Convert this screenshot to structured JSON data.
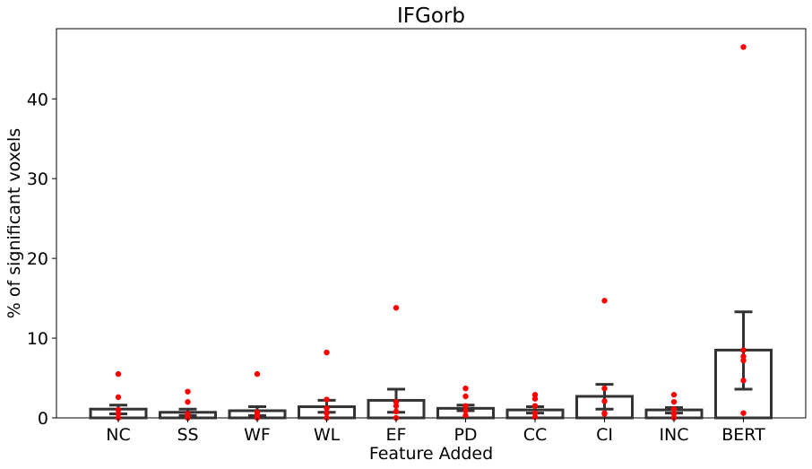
{
  "chart_data": {
    "type": "bar",
    "title": "IFGorb",
    "xlabel": "Feature Added",
    "ylabel": "% of significant voxels",
    "ylim": [
      0,
      48.8
    ],
    "yticks": [
      0,
      10,
      20,
      30,
      40
    ],
    "grid": false,
    "legend": "none",
    "categories": [
      "NC",
      "SS",
      "WF",
      "WL",
      "EF",
      "PD",
      "CC",
      "CI",
      "INC",
      "BERT"
    ],
    "series": [
      {
        "values": [
          1.1,
          0.7,
          0.9,
          1.4,
          2.2,
          1.2,
          1.0,
          2.7,
          1.0,
          8.5
        ],
        "error_low": [
          0.5,
          0.3,
          0.3,
          0.7,
          0.7,
          0.9,
          0.6,
          1.1,
          0.6,
          3.6
        ],
        "error_high": [
          1.6,
          1.1,
          1.4,
          2.2,
          3.6,
          1.6,
          1.4,
          4.2,
          1.3,
          13.3
        ]
      }
    ],
    "points": [
      [
        5.5,
        2.6,
        1.0,
        0.5,
        0.0
      ],
      [
        3.3,
        2.0,
        0.5,
        0.2,
        0.0
      ],
      [
        5.5,
        0.7,
        0.4,
        0.1,
        0.0
      ],
      [
        8.2,
        2.3,
        1.2,
        0.6,
        0.0
      ],
      [
        13.8,
        2.0,
        1.5,
        0.8,
        0.0
      ],
      [
        3.7,
        2.7,
        1.5,
        0.9,
        0.3
      ],
      [
        2.9,
        2.4,
        1.5,
        0.6,
        0.1
      ],
      [
        14.7,
        3.7,
        2.1,
        0.6,
        0.5
      ],
      [
        2.9,
        2.0,
        1.1,
        0.5,
        0.0
      ],
      [
        46.5,
        8.5,
        7.7,
        7.2,
        4.7,
        0.6
      ]
    ],
    "colors": {
      "bar_edge": "#333333",
      "bar_fill": "#ffffff",
      "errorbar": "#333333",
      "points": "#ff0000"
    }
  }
}
